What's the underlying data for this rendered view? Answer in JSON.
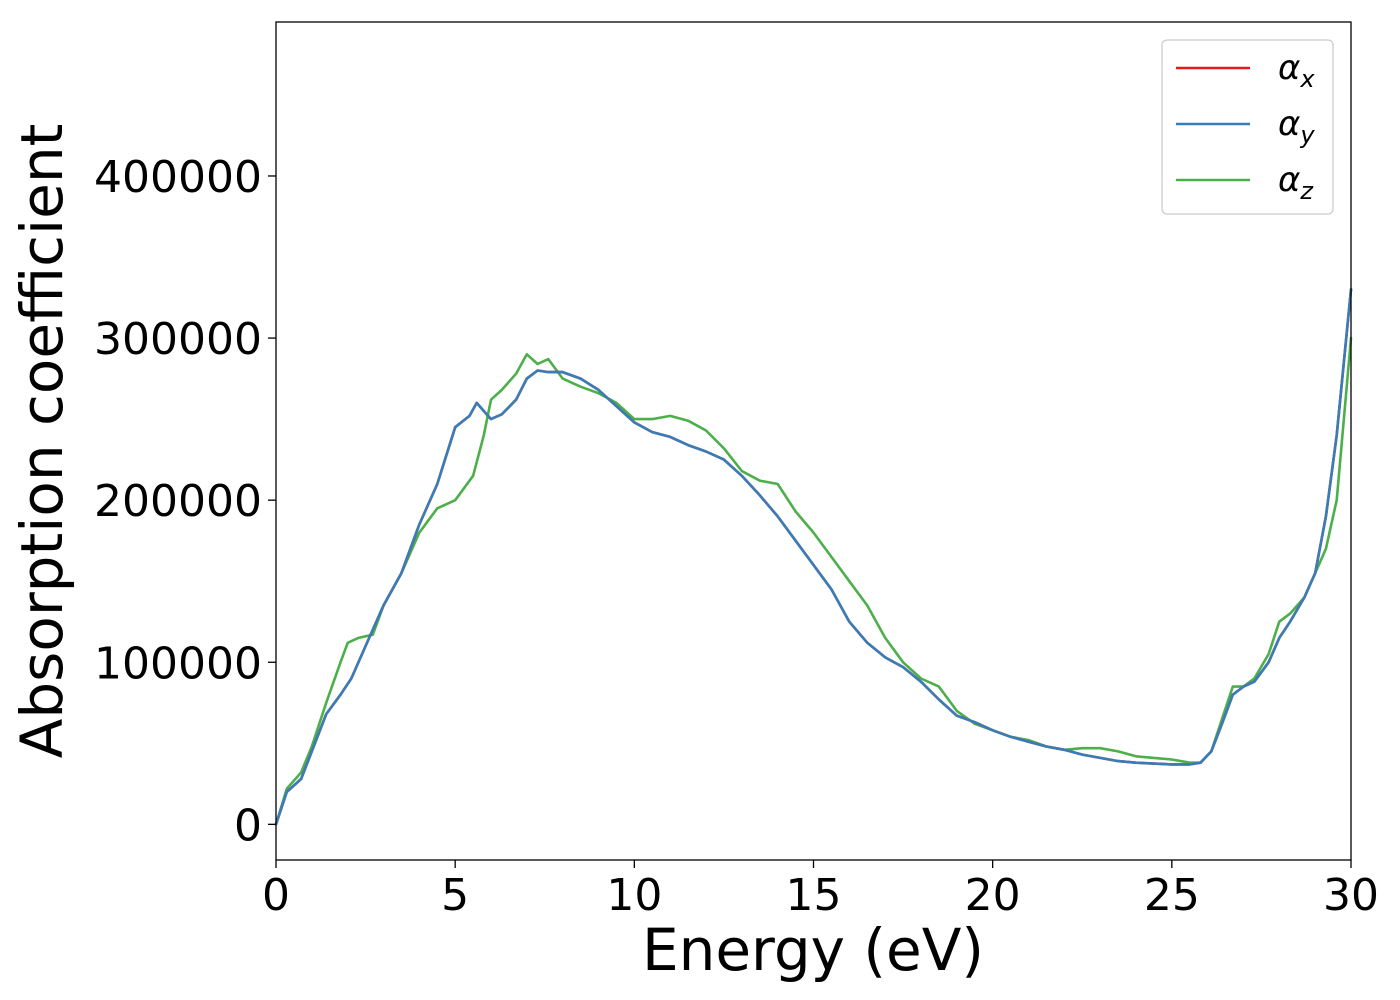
{
  "chart_data": {
    "type": "line",
    "title": "",
    "xlabel": "Energy (eV)",
    "ylabel": "Absorption coefficient",
    "xlim": [
      0,
      30
    ],
    "ylim": [
      -22000,
      495000
    ],
    "xticks": [
      0,
      5,
      10,
      15,
      20,
      25,
      30
    ],
    "xtick_labels": [
      "0",
      "5",
      "10",
      "15",
      "20",
      "25",
      "30"
    ],
    "yticks": [
      0,
      100000,
      200000,
      300000,
      400000
    ],
    "ytick_labels": [
      "0",
      "100000",
      "200000",
      "300000",
      "400000"
    ],
    "grid": false,
    "legend_position": "top-right",
    "series": [
      {
        "name": "α",
        "subscript": "x",
        "color": "#e41a1c",
        "x": [
          0,
          0.3,
          0.7,
          1.0,
          1.4,
          1.8,
          2.1,
          2.5,
          3.0,
          3.5,
          4.0,
          4.5,
          5.0,
          5.4,
          5.6,
          5.8,
          6.0,
          6.3,
          6.7,
          7.0,
          7.3,
          7.6,
          8.0,
          8.5,
          9.0,
          9.5,
          10.0,
          10.5,
          11.0,
          11.5,
          12.0,
          12.5,
          13.0,
          13.5,
          14.0,
          14.5,
          15.0,
          15.5,
          16.0,
          16.5,
          17.0,
          17.5,
          18.0,
          18.5,
          19.0,
          19.5,
          20.0,
          20.5,
          21.0,
          21.5,
          22.0,
          22.5,
          23.0,
          23.5,
          24.0,
          24.5,
          25.0,
          25.5,
          25.8,
          26.1,
          26.4,
          26.7,
          27.0,
          27.3,
          27.7,
          28.0,
          28.3,
          28.7,
          29.0,
          29.3,
          29.6,
          30.0
        ],
        "values": [
          0,
          20000,
          28000,
          45000,
          68000,
          80000,
          90000,
          110000,
          135000,
          155000,
          185000,
          210000,
          245000,
          252000,
          260000,
          255000,
          250000,
          253000,
          262000,
          275000,
          280000,
          279000,
          279000,
          275000,
          268000,
          258000,
          248000,
          242000,
          239000,
          234000,
          230000,
          225000,
          215000,
          203000,
          190000,
          175000,
          160000,
          145000,
          125000,
          112000,
          103000,
          97000,
          88000,
          77000,
          67000,
          63000,
          58000,
          54000,
          51000,
          48000,
          46000,
          43000,
          41000,
          39000,
          38000,
          37500,
          37000,
          37000,
          38000,
          45000,
          62000,
          80000,
          85000,
          88000,
          100000,
          115000,
          125000,
          140000,
          155000,
          190000,
          240000,
          330000
        ]
      },
      {
        "name": "α",
        "subscript": "y",
        "color": "#377eb8",
        "x": [
          0,
          0.3,
          0.7,
          1.0,
          1.4,
          1.8,
          2.1,
          2.5,
          3.0,
          3.5,
          4.0,
          4.5,
          5.0,
          5.4,
          5.6,
          5.8,
          6.0,
          6.3,
          6.7,
          7.0,
          7.3,
          7.6,
          8.0,
          8.5,
          9.0,
          9.5,
          10.0,
          10.5,
          11.0,
          11.5,
          12.0,
          12.5,
          13.0,
          13.5,
          14.0,
          14.5,
          15.0,
          15.5,
          16.0,
          16.5,
          17.0,
          17.5,
          18.0,
          18.5,
          19.0,
          19.5,
          20.0,
          20.5,
          21.0,
          21.5,
          22.0,
          22.5,
          23.0,
          23.5,
          24.0,
          24.5,
          25.0,
          25.5,
          25.8,
          26.1,
          26.4,
          26.7,
          27.0,
          27.3,
          27.7,
          28.0,
          28.3,
          28.7,
          29.0,
          29.3,
          29.6,
          30.0
        ],
        "values": [
          0,
          20000,
          28000,
          45000,
          68000,
          80000,
          90000,
          110000,
          135000,
          155000,
          185000,
          210000,
          245000,
          252000,
          260000,
          255000,
          250000,
          253000,
          262000,
          275000,
          280000,
          279000,
          279000,
          275000,
          268000,
          258000,
          248000,
          242000,
          239000,
          234000,
          230000,
          225000,
          215000,
          203000,
          190000,
          175000,
          160000,
          145000,
          125000,
          112000,
          103000,
          97000,
          88000,
          77000,
          67000,
          63000,
          58000,
          54000,
          51000,
          48000,
          46000,
          43000,
          41000,
          39000,
          38000,
          37500,
          37000,
          37000,
          38000,
          45000,
          62000,
          80000,
          85000,
          88000,
          100000,
          115000,
          125000,
          140000,
          155000,
          190000,
          240000,
          330000
        ]
      },
      {
        "name": "α",
        "subscript": "z",
        "color": "#4daf4a",
        "x": [
          0,
          0.3,
          0.7,
          1.0,
          1.4,
          1.8,
          2.0,
          2.3,
          2.7,
          3.0,
          3.5,
          4.0,
          4.5,
          5.0,
          5.5,
          5.8,
          6.0,
          6.3,
          6.7,
          7.0,
          7.3,
          7.6,
          8.0,
          8.5,
          9.0,
          9.5,
          10.0,
          10.5,
          11.0,
          11.5,
          12.0,
          12.5,
          13.0,
          13.5,
          14.0,
          14.5,
          15.0,
          15.5,
          16.0,
          16.5,
          17.0,
          17.5,
          18.0,
          18.5,
          19.0,
          19.5,
          20.0,
          20.5,
          21.0,
          21.5,
          22.0,
          22.5,
          23.0,
          23.5,
          24.0,
          24.5,
          25.0,
          25.5,
          25.8,
          26.1,
          26.4,
          26.7,
          27.0,
          27.3,
          27.7,
          28.0,
          28.3,
          28.7,
          29.0,
          29.3,
          29.6,
          30.0
        ],
        "values": [
          0,
          22000,
          32000,
          48000,
          75000,
          100000,
          112000,
          115000,
          117000,
          135000,
          155000,
          180000,
          195000,
          200000,
          215000,
          240000,
          262000,
          268000,
          278000,
          290000,
          284000,
          287000,
          275000,
          270000,
          266000,
          260000,
          250000,
          250000,
          252000,
          249000,
          243000,
          232000,
          218000,
          212000,
          210000,
          193000,
          180000,
          165000,
          150000,
          135000,
          115000,
          100000,
          90000,
          85000,
          70000,
          62000,
          58000,
          54000,
          52000,
          48000,
          46000,
          47000,
          47000,
          45000,
          42000,
          41000,
          40000,
          38000,
          38000,
          45000,
          65000,
          85000,
          85000,
          90000,
          105000,
          125000,
          130000,
          140000,
          155000,
          170000,
          200000,
          300000
        ]
      }
    ]
  }
}
